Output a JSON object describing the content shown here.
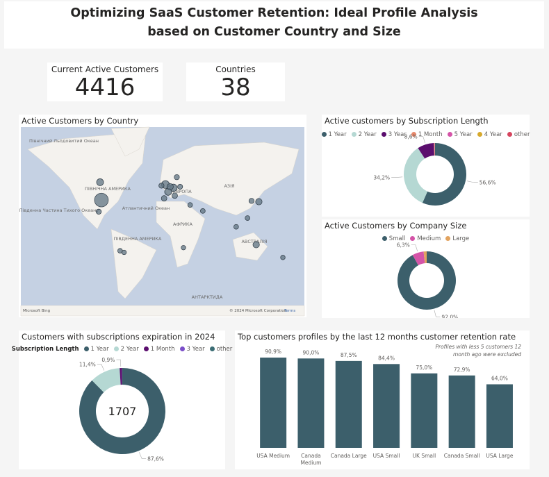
{
  "header": {
    "title": "Optimizing SaaS Customer Retention: Ideal Profile Analysis based on Customer Country and Size"
  },
  "kpis": [
    {
      "label": "Current Active Customers",
      "value": 4416
    },
    {
      "label": "Countries",
      "value": 38
    }
  ],
  "chart_data": [
    {
      "type": "map",
      "title": "Active Customers by Country",
      "lon": [
        -98,
        -100,
        -102,
        -70,
        -64,
        -2,
        10,
        2,
        5,
        -4,
        12,
        15,
        20,
        -8,
        35,
        138,
        127,
        104,
        121,
        134,
        174,
        25,
        54
      ],
      "lat": [
        38,
        56,
        23,
        -33,
        -35,
        54,
        51,
        47,
        52,
        40,
        43,
        60,
        52,
        53,
        32,
        36,
        37,
        1,
        14,
        -25,
        -41,
        -29,
        24
      ],
      "sizes": [
        1500,
        200,
        60,
        40,
        30,
        300,
        250,
        200,
        150,
        80,
        80,
        60,
        50,
        60,
        40,
        150,
        60,
        40,
        40,
        150,
        30,
        30,
        40
      ],
      "labels": [
        "Північний Льодовитий Океан",
        "ПІВНІЧНА АМЕРИКА",
        "ЄВРОПА",
        "АЗІЯ",
        "Атлантичний Океан",
        "Південна Частина Тихого Океану",
        "АФРИКА",
        "ПІВДЕННА АМЕРИКА",
        "АВСТРАЛІЯ",
        "АНТАРКТИДА"
      ],
      "credits": [
        "© 2024 Microsoft Corporation",
        "Terms"
      ],
      "logo": "Microsoft Bing"
    },
    {
      "type": "donut",
      "title": "Active customers by Subscription Length",
      "categories": [
        "1 Year",
        "2 Year",
        "3 Year",
        "1 Month",
        "5 Year",
        "4 Year",
        "other"
      ],
      "values": [
        56.6,
        34.2,
        8.6,
        0.3,
        0.15,
        0.1,
        0.05
      ],
      "value_labels": [
        "56,6%",
        "34,2%",
        "8,6%",
        null,
        null,
        null,
        null
      ],
      "colors": [
        "#3c5f6b",
        "#b5d8d3",
        "#5b0e6e",
        "#e8896c",
        "#d554a8",
        "#d7a92c",
        "#d6455e"
      ]
    },
    {
      "type": "donut",
      "title": "Active Customers by Company Size",
      "categories": [
        "Small",
        "Medium",
        "Large"
      ],
      "values": [
        92.0,
        6.3,
        1.7
      ],
      "value_labels": [
        "92,0%",
        "6,3%",
        null
      ],
      "colors": [
        "#3c5f6b",
        "#d554a8",
        "#e2a35f"
      ]
    },
    {
      "type": "donut",
      "title": "Customers with subscriptions expiration in 2024",
      "legend_title": "Subscription Length",
      "categories": [
        "1 Year",
        "2 Year",
        "1 Month",
        "3 Year",
        "other"
      ],
      "values": [
        87.6,
        11.4,
        0.9,
        0.07,
        0.03
      ],
      "value_labels": [
        "87,6%",
        "11,4%",
        "0,9%",
        null,
        null
      ],
      "colors": [
        "#3c5f6b",
        "#b5d8d3",
        "#5b0e6e",
        "#7b4fc9",
        "#3b6d74"
      ],
      "center_value": 1707
    },
    {
      "type": "bar",
      "title": "Top customers profiles by the last 12 months customer retention rate",
      "annotation": "Profiles with less 5 customers 12 month ago were excluded",
      "categories": [
        "USA Medium",
        "Canada Medium",
        "Canada Large",
        "USA Small",
        "UK Small",
        "Canada Small",
        "USA Large"
      ],
      "values": [
        90.9,
        90.0,
        87.5,
        84.4,
        75.0,
        72.9,
        64.0
      ],
      "value_labels": [
        "90,9%",
        "90,0%",
        "87,5%",
        "84,4%",
        "75,0%",
        "72,9%",
        "64,0%"
      ],
      "color": "#3c5f6b",
      "ylim": [
        0,
        100
      ]
    }
  ]
}
